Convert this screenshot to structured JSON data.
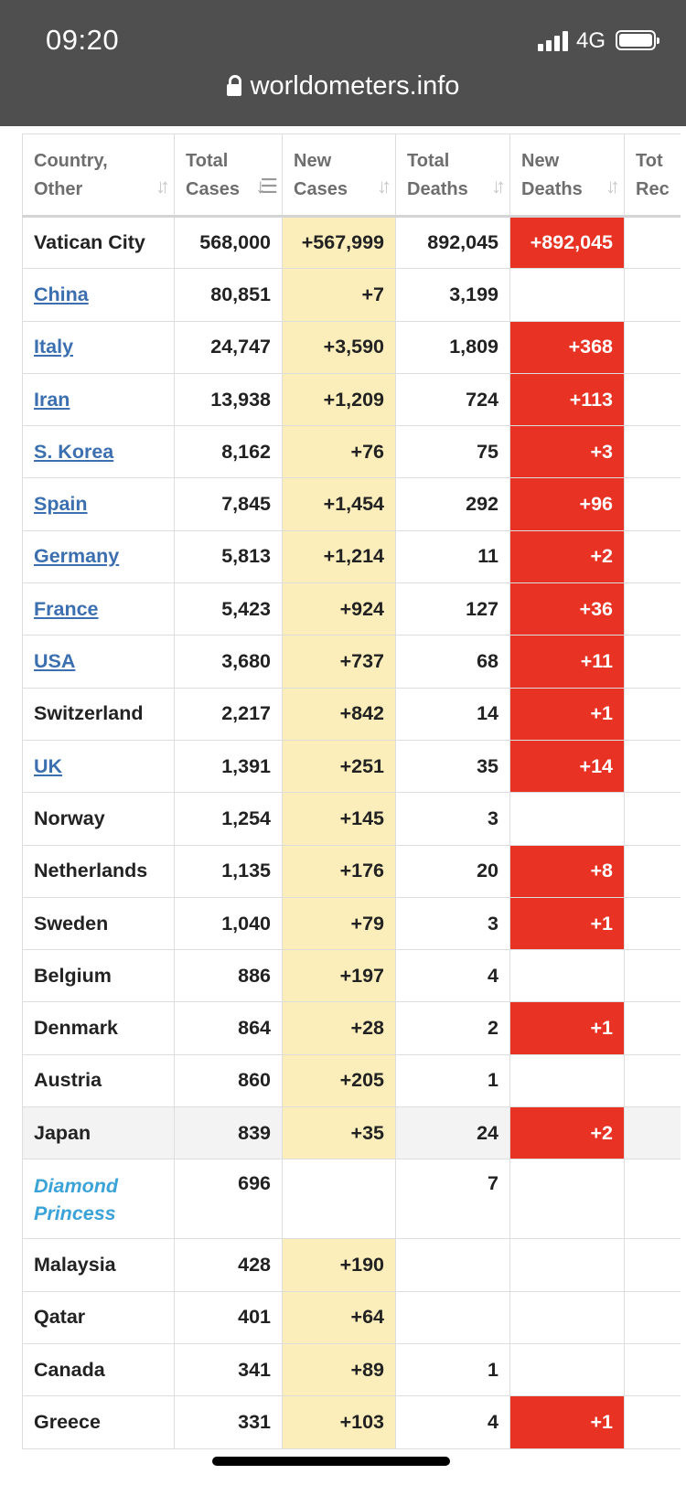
{
  "status_bar": {
    "time": "09:20",
    "network": "4G"
  },
  "browser": {
    "url": "worldometers.info"
  },
  "table": {
    "headers": [
      {
        "line1": "Country,",
        "line2": "Other"
      },
      {
        "line1": "Total",
        "line2": "Cases"
      },
      {
        "line1": "New",
        "line2": "Cases"
      },
      {
        "line1": "Total",
        "line2": "Deaths"
      },
      {
        "line1": "New",
        "line2": "Deaths"
      },
      {
        "line1": "Tot",
        "line2": "Rec"
      }
    ],
    "rows": [
      {
        "country": "Vatican City",
        "total_cases": "568,000",
        "new_cases": "+567,999",
        "total_deaths": "892,045",
        "new_deaths": "+892,045"
      },
      {
        "country": "China",
        "total_cases": "80,851",
        "new_cases": "+7",
        "total_deaths": "3,199",
        "new_deaths": ""
      },
      {
        "country": "Italy",
        "total_cases": "24,747",
        "new_cases": "+3,590",
        "total_deaths": "1,809",
        "new_deaths": "+368"
      },
      {
        "country": "Iran",
        "total_cases": "13,938",
        "new_cases": "+1,209",
        "total_deaths": "724",
        "new_deaths": "+113"
      },
      {
        "country": "S. Korea",
        "total_cases": "8,162",
        "new_cases": "+76",
        "total_deaths": "75",
        "new_deaths": "+3"
      },
      {
        "country": "Spain",
        "total_cases": "7,845",
        "new_cases": "+1,454",
        "total_deaths": "292",
        "new_deaths": "+96"
      },
      {
        "country": "Germany",
        "total_cases": "5,813",
        "new_cases": "+1,214",
        "total_deaths": "11",
        "new_deaths": "+2"
      },
      {
        "country": "France",
        "total_cases": "5,423",
        "new_cases": "+924",
        "total_deaths": "127",
        "new_deaths": "+36"
      },
      {
        "country": "USA",
        "total_cases": "3,680",
        "new_cases": "+737",
        "total_deaths": "68",
        "new_deaths": "+11"
      },
      {
        "country": "Switzerland",
        "total_cases": "2,217",
        "new_cases": "+842",
        "total_deaths": "14",
        "new_deaths": "+1"
      },
      {
        "country": "UK",
        "total_cases": "1,391",
        "new_cases": "+251",
        "total_deaths": "35",
        "new_deaths": "+14"
      },
      {
        "country": "Norway",
        "total_cases": "1,254",
        "new_cases": "+145",
        "total_deaths": "3",
        "new_deaths": ""
      },
      {
        "country": "Netherlands",
        "total_cases": "1,135",
        "new_cases": "+176",
        "total_deaths": "20",
        "new_deaths": "+8"
      },
      {
        "country": "Sweden",
        "total_cases": "1,040",
        "new_cases": "+79",
        "total_deaths": "3",
        "new_deaths": "+1"
      },
      {
        "country": "Belgium",
        "total_cases": "886",
        "new_cases": "+197",
        "total_deaths": "4",
        "new_deaths": ""
      },
      {
        "country": "Denmark",
        "total_cases": "864",
        "new_cases": "+28",
        "total_deaths": "2",
        "new_deaths": "+1"
      },
      {
        "country": "Austria",
        "total_cases": "860",
        "new_cases": "+205",
        "total_deaths": "1",
        "new_deaths": ""
      },
      {
        "country": "Japan",
        "total_cases": "839",
        "new_cases": "+35",
        "total_deaths": "24",
        "new_deaths": "+2"
      },
      {
        "country": "Diamond Princess",
        "total_cases": "696",
        "new_cases": "",
        "total_deaths": "7",
        "new_deaths": ""
      },
      {
        "country": "Malaysia",
        "total_cases": "428",
        "new_cases": "+190",
        "total_deaths": "",
        "new_deaths": ""
      },
      {
        "country": "Qatar",
        "total_cases": "401",
        "new_cases": "+64",
        "total_deaths": "",
        "new_deaths": ""
      },
      {
        "country": "Canada",
        "total_cases": "341",
        "new_cases": "+89",
        "total_deaths": "1",
        "new_deaths": ""
      },
      {
        "country": "Greece",
        "total_cases": "331",
        "new_cases": "+103",
        "total_deaths": "4",
        "new_deaths": "+1"
      }
    ]
  },
  "colors": {
    "status_bar_bg": "#4f4f4f",
    "new_cases_bg": "#fbeebb",
    "new_deaths_bg": "#e73224",
    "link": "#3b6fb0",
    "special_link": "#3ba3d8"
  }
}
